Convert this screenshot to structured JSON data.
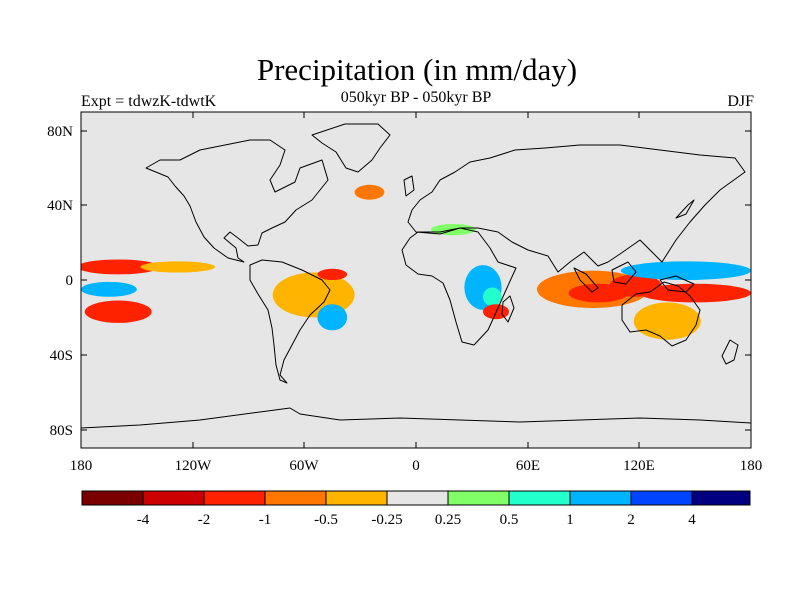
{
  "title": "Precipitation (in mm/day)",
  "subtitle_left": "Expt = tdwzK-tdwtK",
  "subtitle_center": "050kyr BP - 050kyr BP",
  "subtitle_right": "DJF",
  "map": {
    "projection": "cylindrical-equidistant",
    "lon_range": [
      -180,
      180
    ],
    "lat_range": [
      -90,
      90
    ],
    "background_color": "#e6e6e6",
    "coastline_color": "#000000",
    "lat_ticks": [
      {
        "value": 80,
        "label": "80N"
      },
      {
        "value": 40,
        "label": "40N"
      },
      {
        "value": 0,
        "label": "0"
      },
      {
        "value": -40,
        "label": "40S"
      },
      {
        "value": -80,
        "label": "80S"
      }
    ],
    "lon_ticks": [
      {
        "value": -180,
        "label": "180"
      },
      {
        "value": -120,
        "label": "120W"
      },
      {
        "value": -60,
        "label": "60W"
      },
      {
        "value": 0,
        "label": "0"
      },
      {
        "value": 60,
        "label": "60E"
      },
      {
        "value": 120,
        "label": "120E"
      },
      {
        "value": 180,
        "label": "180"
      }
    ]
  },
  "colorbar": {
    "colors": [
      "#7a0000",
      "#cc0000",
      "#ff2200",
      "#ff7700",
      "#ffb400",
      "#e6e6e6",
      "#80ff66",
      "#22ffcc",
      "#00b4ff",
      "#0044ff",
      "#000080"
    ],
    "labels": [
      {
        "boundary": 1,
        "text": "-4"
      },
      {
        "boundary": 2,
        "text": "-2"
      },
      {
        "boundary": 3,
        "text": "-1"
      },
      {
        "boundary": 4,
        "text": "-0.5"
      },
      {
        "boundary": 5,
        "text": "-0.25"
      },
      {
        "boundary": 6,
        "text": "0.25"
      },
      {
        "boundary": 7,
        "text": "0.5"
      },
      {
        "boundary": 8,
        "text": "1"
      },
      {
        "boundary": 9,
        "text": "2"
      },
      {
        "boundary": 10,
        "text": "4"
      }
    ]
  },
  "anomaly_patches": [
    {
      "lon": 36,
      "lat": -4,
      "rx": 10,
      "ry": 12,
      "color": "#00b4ff"
    },
    {
      "lon": 41,
      "lat": -9,
      "rx": 5,
      "ry": 5,
      "color": "#22ffcc"
    },
    {
      "lon": 95,
      "lat": -5,
      "rx": 30,
      "ry": 10,
      "color": "#ff7700"
    },
    {
      "lon": 98,
      "lat": -7,
      "rx": 16,
      "ry": 5,
      "color": "#ff2200"
    },
    {
      "lon": 118,
      "lat": -3,
      "rx": 14,
      "ry": 6,
      "color": "#ff2200"
    },
    {
      "lon": 145,
      "lat": 5,
      "rx": 35,
      "ry": 5,
      "color": "#00b4ff"
    },
    {
      "lon": 150,
      "lat": -7,
      "rx": 30,
      "ry": 5,
      "color": "#ff2200"
    },
    {
      "lon": 135,
      "lat": -22,
      "rx": 18,
      "ry": 10,
      "color": "#ffb400"
    },
    {
      "lon": -160,
      "lat": 7,
      "rx": 22,
      "ry": 4,
      "color": "#ff2200"
    },
    {
      "lon": -128,
      "lat": 7,
      "rx": 20,
      "ry": 3,
      "color": "#ffb400"
    },
    {
      "lon": -165,
      "lat": -5,
      "rx": 15,
      "ry": 4,
      "color": "#00b4ff"
    },
    {
      "lon": -160,
      "lat": -17,
      "rx": 18,
      "ry": 6,
      "color": "#ff2200"
    },
    {
      "lon": -55,
      "lat": -8,
      "rx": 22,
      "ry": 12,
      "color": "#ffb400"
    },
    {
      "lon": -45,
      "lat": 3,
      "rx": 8,
      "ry": 3,
      "color": "#ff2200"
    },
    {
      "lon": -45,
      "lat": -20,
      "rx": 8,
      "ry": 7,
      "color": "#00b4ff"
    },
    {
      "lon": -25,
      "lat": 47,
      "rx": 8,
      "ry": 4,
      "color": "#ff7700"
    },
    {
      "lon": 20,
      "lat": 27,
      "rx": 12,
      "ry": 3,
      "color": "#80ff66"
    },
    {
      "lon": 43,
      "lat": -17,
      "rx": 7,
      "ry": 4,
      "color": "#ff2200"
    }
  ]
}
